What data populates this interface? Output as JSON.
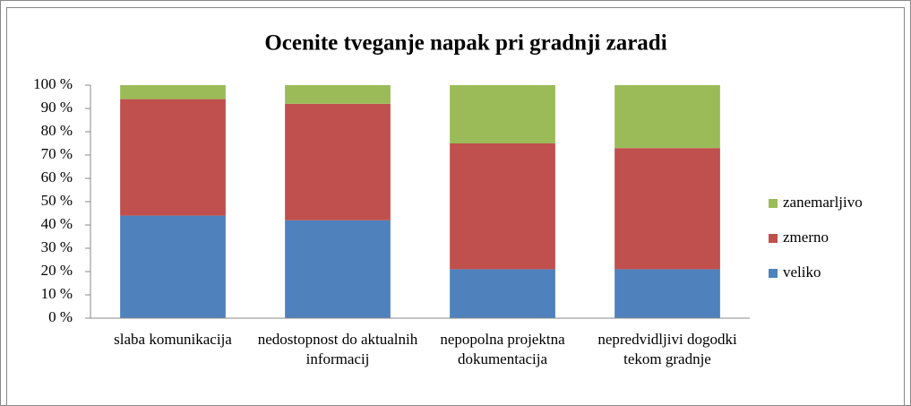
{
  "chart_data": {
    "type": "stacked_bar",
    "title": "Ocenite tveganje napak pri gradnji zaradi",
    "categories": [
      "slaba komunikacija",
      "nedostopnost do aktualnih informacij",
      "nepopolna projektna dokumentacija",
      "nepredvidljivi dogodki tekom gradnje"
    ],
    "series": [
      {
        "name": "veliko",
        "color": "#4f81bd",
        "values": [
          44,
          42,
          21,
          21
        ]
      },
      {
        "name": "zmerno",
        "color": "#c0504d",
        "values": [
          50,
          50,
          54,
          52
        ]
      },
      {
        "name": "zanemarljivo",
        "color": "#9bbb59",
        "values": [
          6,
          8,
          25,
          27
        ]
      }
    ],
    "ylim": [
      0,
      100
    ],
    "yticks": [
      {
        "value": 0,
        "label": "0 %"
      },
      {
        "value": 10,
        "label": "10 %"
      },
      {
        "value": 20,
        "label": "20 %"
      },
      {
        "value": 30,
        "label": "30 %"
      },
      {
        "value": 40,
        "label": "40 %"
      },
      {
        "value": 50,
        "label": "50 %"
      },
      {
        "value": 60,
        "label": "60 %"
      },
      {
        "value": 70,
        "label": "70 %"
      },
      {
        "value": 80,
        "label": "80 %"
      },
      {
        "value": 90,
        "label": "90 %"
      },
      {
        "value": 100,
        "label": "100 %"
      }
    ],
    "legend": "right",
    "grid": false
  }
}
